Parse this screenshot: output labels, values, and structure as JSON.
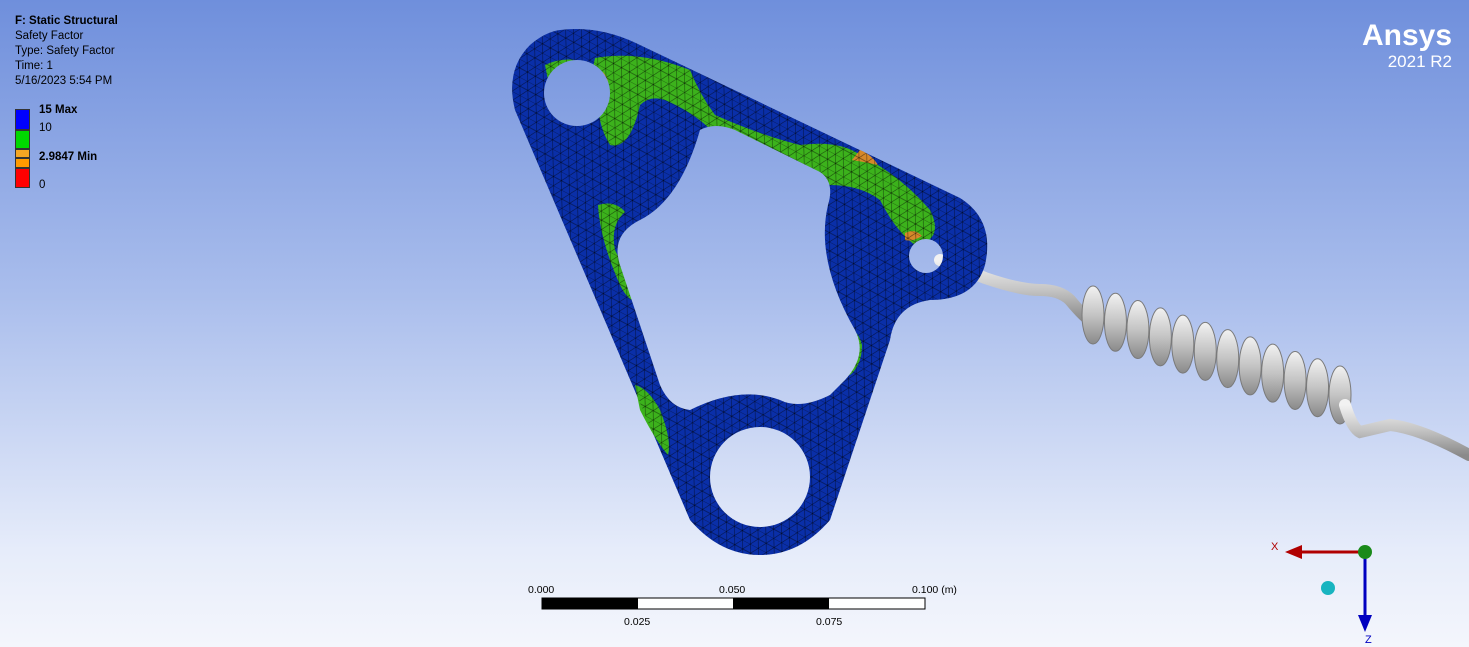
{
  "info": {
    "title": "F: Static Structural",
    "result": "Safety Factor",
    "type": "Type: Safety Factor",
    "time": "Time: 1",
    "timestamp": "5/16/2023 5:54 PM"
  },
  "legend": {
    "entries": [
      {
        "label": "15 Max",
        "color": "#0000ff",
        "bold": true
      },
      {
        "label": "10",
        "color": "#00d800",
        "bold": false
      },
      {
        "label": "2.9847 Min",
        "color": "#f5a623",
        "bold": true
      },
      {
        "label": "0",
        "color": "#ff0000",
        "bold": false
      }
    ]
  },
  "brand": {
    "name": "Ansys",
    "version": "2021 R2"
  },
  "scale_bar": {
    "top_labels": [
      "0.000",
      "0.050",
      "0.100 (m)"
    ],
    "bottom_labels": [
      "0.025",
      "0.075"
    ]
  },
  "triad": {
    "x_label": "X",
    "z_label": "Z",
    "x_color": "#b00000",
    "z_color": "#0000c0",
    "origin_color": "#1a8a1a",
    "iso_color": "#18b4c0"
  },
  "colors": {
    "part_blue": "#0a2fa8",
    "part_green": "#3cb21c",
    "part_orange": "#d6882a",
    "spring": "#c8c8c8"
  }
}
